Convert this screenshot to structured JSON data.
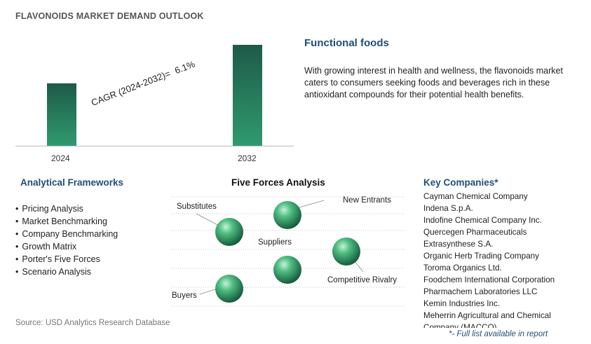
{
  "header": {
    "title": "FLAVONOIDS MARKET DEMAND OUTLOOK"
  },
  "chart_data": {
    "type": "bar",
    "categories": [
      "2024",
      "2032"
    ],
    "values": [
      1.0,
      1.61
    ],
    "annotation": {
      "label": "CAGR (2024-2032)=",
      "value": "6.1%"
    },
    "colors": {
      "bar_top": "#1e5a48",
      "bar_bottom": "#2f9a6e"
    }
  },
  "segment": {
    "title": "Functional foods",
    "description": "With growing interest in health and wellness, the flavonoids market caters to consumers seeking foods and beverages rich in these antioxidant compounds for their potential health benefits."
  },
  "analytical_frameworks": {
    "title": "Analytical Frameworks",
    "items": [
      "Pricing Analysis",
      "Market Benchmarking",
      "Company Benchmarking",
      "Growth Matrix",
      "Porter's Five Forces",
      "Scenario Analysis"
    ]
  },
  "five_forces": {
    "title": "Five Forces Analysis",
    "labels": {
      "substitutes": "Substitutes",
      "new_entrants": "New Entrants",
      "suppliers": "Suppliers",
      "competitive_rivalry": "Competitive Rivalry",
      "buyers": "Buyers"
    },
    "sphere_color": "#2e8b57"
  },
  "key_companies": {
    "title": "Key Companies*",
    "items": [
      "Cayman Chemical Company",
      "Indena S.p.A.",
      "Indofine Chemical Company Inc.",
      "Quercegen Pharmaceuticals",
      "Extrasynthese S.A.",
      "Organic Herb Trading Company",
      "Toroma Organics Ltd.",
      "Foodchem International Corporation",
      "Pharmachem Laboratories LLC",
      "Kemin Industries Inc.",
      "Meherrin Agricultural and Chemical Company (MACCO)"
    ],
    "note": "*- Full list available in report"
  },
  "footer": {
    "source": "Source: USD Analytics Research Database"
  }
}
